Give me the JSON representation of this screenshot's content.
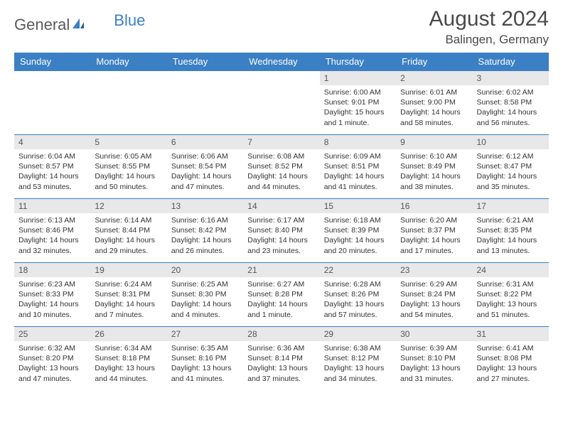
{
  "brand": {
    "name1": "General",
    "name2": "Blue"
  },
  "title": "August 2024",
  "location": "Balingen, Germany",
  "colors": {
    "header_bg": "#3b7fc4",
    "header_text": "#ffffff",
    "daynum_bg": "#e8e8e8",
    "border": "#3b7fc4",
    "text": "#333333",
    "brand_gray": "#5a5a5a",
    "brand_blue": "#3b7fc4"
  },
  "weekdays": [
    "Sunday",
    "Monday",
    "Tuesday",
    "Wednesday",
    "Thursday",
    "Friday",
    "Saturday"
  ],
  "weeks": [
    [
      null,
      null,
      null,
      null,
      {
        "n": "1",
        "sunrise": "6:00 AM",
        "sunset": "9:01 PM",
        "daylight": "15 hours and 1 minute."
      },
      {
        "n": "2",
        "sunrise": "6:01 AM",
        "sunset": "9:00 PM",
        "daylight": "14 hours and 58 minutes."
      },
      {
        "n": "3",
        "sunrise": "6:02 AM",
        "sunset": "8:58 PM",
        "daylight": "14 hours and 56 minutes."
      }
    ],
    [
      {
        "n": "4",
        "sunrise": "6:04 AM",
        "sunset": "8:57 PM",
        "daylight": "14 hours and 53 minutes."
      },
      {
        "n": "5",
        "sunrise": "6:05 AM",
        "sunset": "8:55 PM",
        "daylight": "14 hours and 50 minutes."
      },
      {
        "n": "6",
        "sunrise": "6:06 AM",
        "sunset": "8:54 PM",
        "daylight": "14 hours and 47 minutes."
      },
      {
        "n": "7",
        "sunrise": "6:08 AM",
        "sunset": "8:52 PM",
        "daylight": "14 hours and 44 minutes."
      },
      {
        "n": "8",
        "sunrise": "6:09 AM",
        "sunset": "8:51 PM",
        "daylight": "14 hours and 41 minutes."
      },
      {
        "n": "9",
        "sunrise": "6:10 AM",
        "sunset": "8:49 PM",
        "daylight": "14 hours and 38 minutes."
      },
      {
        "n": "10",
        "sunrise": "6:12 AM",
        "sunset": "8:47 PM",
        "daylight": "14 hours and 35 minutes."
      }
    ],
    [
      {
        "n": "11",
        "sunrise": "6:13 AM",
        "sunset": "8:46 PM",
        "daylight": "14 hours and 32 minutes."
      },
      {
        "n": "12",
        "sunrise": "6:14 AM",
        "sunset": "8:44 PM",
        "daylight": "14 hours and 29 minutes."
      },
      {
        "n": "13",
        "sunrise": "6:16 AM",
        "sunset": "8:42 PM",
        "daylight": "14 hours and 26 minutes."
      },
      {
        "n": "14",
        "sunrise": "6:17 AM",
        "sunset": "8:40 PM",
        "daylight": "14 hours and 23 minutes."
      },
      {
        "n": "15",
        "sunrise": "6:18 AM",
        "sunset": "8:39 PM",
        "daylight": "14 hours and 20 minutes."
      },
      {
        "n": "16",
        "sunrise": "6:20 AM",
        "sunset": "8:37 PM",
        "daylight": "14 hours and 17 minutes."
      },
      {
        "n": "17",
        "sunrise": "6:21 AM",
        "sunset": "8:35 PM",
        "daylight": "14 hours and 13 minutes."
      }
    ],
    [
      {
        "n": "18",
        "sunrise": "6:23 AM",
        "sunset": "8:33 PM",
        "daylight": "14 hours and 10 minutes."
      },
      {
        "n": "19",
        "sunrise": "6:24 AM",
        "sunset": "8:31 PM",
        "daylight": "14 hours and 7 minutes."
      },
      {
        "n": "20",
        "sunrise": "6:25 AM",
        "sunset": "8:30 PM",
        "daylight": "14 hours and 4 minutes."
      },
      {
        "n": "21",
        "sunrise": "6:27 AM",
        "sunset": "8:28 PM",
        "daylight": "14 hours and 1 minute."
      },
      {
        "n": "22",
        "sunrise": "6:28 AM",
        "sunset": "8:26 PM",
        "daylight": "13 hours and 57 minutes."
      },
      {
        "n": "23",
        "sunrise": "6:29 AM",
        "sunset": "8:24 PM",
        "daylight": "13 hours and 54 minutes."
      },
      {
        "n": "24",
        "sunrise": "6:31 AM",
        "sunset": "8:22 PM",
        "daylight": "13 hours and 51 minutes."
      }
    ],
    [
      {
        "n": "25",
        "sunrise": "6:32 AM",
        "sunset": "8:20 PM",
        "daylight": "13 hours and 47 minutes."
      },
      {
        "n": "26",
        "sunrise": "6:34 AM",
        "sunset": "8:18 PM",
        "daylight": "13 hours and 44 minutes."
      },
      {
        "n": "27",
        "sunrise": "6:35 AM",
        "sunset": "8:16 PM",
        "daylight": "13 hours and 41 minutes."
      },
      {
        "n": "28",
        "sunrise": "6:36 AM",
        "sunset": "8:14 PM",
        "daylight": "13 hours and 37 minutes."
      },
      {
        "n": "29",
        "sunrise": "6:38 AM",
        "sunset": "8:12 PM",
        "daylight": "13 hours and 34 minutes."
      },
      {
        "n": "30",
        "sunrise": "6:39 AM",
        "sunset": "8:10 PM",
        "daylight": "13 hours and 31 minutes."
      },
      {
        "n": "31",
        "sunrise": "6:41 AM",
        "sunset": "8:08 PM",
        "daylight": "13 hours and 27 minutes."
      }
    ]
  ]
}
